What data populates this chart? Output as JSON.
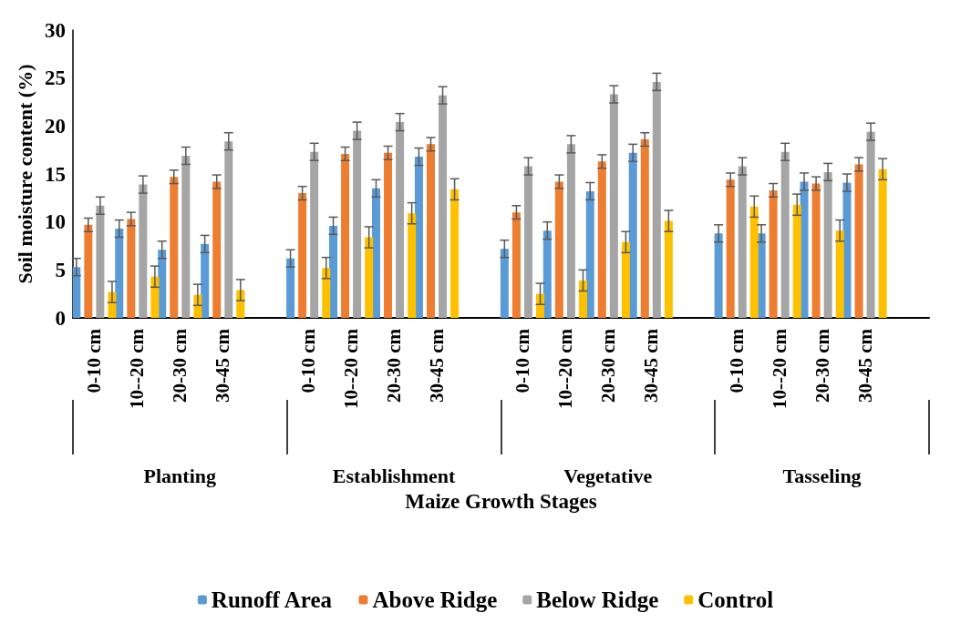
{
  "chart_data": {
    "type": "bar",
    "xlabel": "Maize Growth Stages",
    "ylabel": "Soil moisture content (%)",
    "categories": [
      "0-10 cm",
      "10--20 cm",
      "20-30 cm",
      "30-45 cm",
      null,
      "0-10 cm",
      "10--20 cm",
      "20-30 cm",
      "30-45 cm",
      null,
      "0-10 cm",
      "10--20 cm",
      "20-30 cm",
      "30-45 cm",
      null,
      "0-10 cm",
      "10--20 cm",
      "20-30 cm",
      "30-45 cm",
      null
    ],
    "annotations": [
      "Planting",
      "Establishment",
      "Vegetative",
      "Tasseling"
    ],
    "series": [
      {
        "name": "Runoff Area",
        "color": "#5b9bd5",
        "values": [
          5.3,
          9.3,
          7.1,
          7.7,
          null,
          6.2,
          9.6,
          13.5,
          16.8,
          null,
          7.2,
          9.1,
          13.2,
          17.2,
          null,
          8.8,
          8.8,
          14.2,
          14.1,
          null
        ],
        "errors": [
          0.9,
          0.9,
          0.9,
          0.9,
          null,
          0.9,
          0.9,
          0.9,
          0.9,
          null,
          0.9,
          0.9,
          0.9,
          0.9,
          null,
          0.9,
          0.9,
          0.9,
          0.9,
          null
        ]
      },
      {
        "name": "Above Ridge",
        "color": "#ed7d31",
        "values": [
          9.7,
          10.3,
          14.7,
          14.2,
          null,
          13.0,
          17.1,
          17.2,
          18.1,
          null,
          11.0,
          14.2,
          16.3,
          18.6,
          null,
          14.4,
          13.3,
          14.0,
          16.0,
          null
        ],
        "errors": [
          0.7,
          0.7,
          0.7,
          0.7,
          null,
          0.7,
          0.7,
          0.7,
          0.7,
          null,
          0.7,
          0.7,
          0.7,
          0.7,
          null,
          0.7,
          0.7,
          0.7,
          0.7,
          null
        ]
      },
      {
        "name": "Below Ridge",
        "color": "#a5a5a5",
        "values": [
          11.7,
          13.9,
          16.9,
          18.4,
          null,
          17.3,
          19.5,
          20.4,
          23.2,
          null,
          15.8,
          18.1,
          23.3,
          24.6,
          null,
          15.8,
          17.3,
          15.2,
          19.4,
          null
        ],
        "errors": [
          0.9,
          0.9,
          0.9,
          0.9,
          null,
          0.9,
          0.9,
          0.9,
          0.9,
          null,
          0.9,
          0.9,
          0.9,
          0.9,
          null,
          0.9,
          0.9,
          0.9,
          0.9,
          null
        ]
      },
      {
        "name": "Control",
        "color": "#ffc000",
        "values": [
          2.7,
          4.3,
          2.4,
          2.9,
          null,
          5.2,
          8.4,
          10.9,
          13.4,
          null,
          2.5,
          3.9,
          7.9,
          10.1,
          null,
          11.6,
          11.8,
          9.1,
          15.5,
          null
        ],
        "errors": [
          1.1,
          1.1,
          1.1,
          1.1,
          null,
          1.1,
          1.1,
          1.1,
          1.1,
          null,
          1.1,
          1.1,
          1.1,
          1.1,
          null,
          1.1,
          1.1,
          1.1,
          1.1,
          null
        ]
      }
    ],
    "ylim": [
      0,
      30
    ],
    "yticks": [
      0,
      5,
      10,
      15,
      20,
      25,
      30
    ],
    "grid": false,
    "legend": "bottom"
  }
}
